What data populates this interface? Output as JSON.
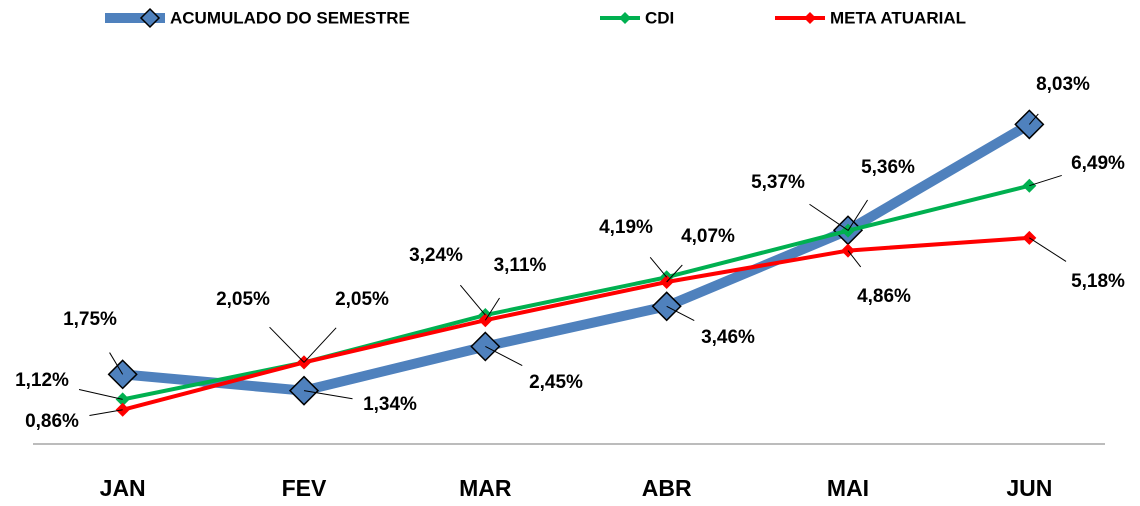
{
  "chart_data": {
    "type": "line",
    "categories": [
      "JAN",
      "FEV",
      "MAR",
      "ABR",
      "MAI",
      "JUN"
    ],
    "ylim": [
      0,
      10
    ],
    "series": [
      {
        "name": "ACUMULADO DO SEMESTRE",
        "color": "#4f81bd",
        "values": [
          1.75,
          1.34,
          2.45,
          3.46,
          5.37,
          8.03
        ],
        "value_labels": [
          "1,75%",
          "1,34%",
          "2,45%",
          "3,46%",
          "5,37%",
          "8,03%"
        ]
      },
      {
        "name": "CDI",
        "color": "#00b050",
        "values": [
          1.12,
          2.05,
          3.24,
          4.19,
          5.36,
          6.49
        ],
        "value_labels": [
          "1,12%",
          "2,05%",
          "3,24%",
          "4,19%",
          "5,36%",
          "6,49%"
        ]
      },
      {
        "name": "META ATUARIAL",
        "color": "#ff0000",
        "values": [
          0.86,
          2.05,
          3.11,
          4.07,
          4.86,
          5.18
        ],
        "value_labels": [
          "0,86%",
          "2,05%",
          "3,11%",
          "4,07%",
          "4,86%",
          "5,18%"
        ]
      }
    ]
  }
}
